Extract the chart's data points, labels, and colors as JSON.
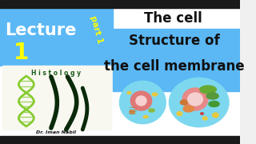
{
  "bg_color": "#f0f0f0",
  "dark_strip_color": "#1a1a1a",
  "blue_color": "#5bb8f5",
  "white": "#ffffff",
  "lecture_text": "Lecture",
  "lecture_color": "#ffffff",
  "lecture_fontsize": 15,
  "number_text": "1",
  "number_color": "#ffff00",
  "number_fontsize": 20,
  "part_text": "part 1",
  "part_color": "#ffff00",
  "part_fontsize": 7.5,
  "the_cell_text": "The cell",
  "the_cell_color": "#111111",
  "the_cell_fontsize": 12,
  "structure_text1": "Structure of",
  "structure_text2": "the cell membrane",
  "structure_color": "#111111",
  "structure_fontsize": 12,
  "histology_text": "H i s t o l o g y",
  "histology_color": "#1a5a1a",
  "histology_fontsize": 5.5,
  "dr_text": "Dr. Iman Nabil",
  "dr_color": "#111111",
  "dr_fontsize": 4.5,
  "dna_color": "#88cc33",
  "dna_dark": "#1a3a00",
  "arabic_color": "#0a2a0a",
  "cell_bg": "#7dd8ef",
  "cell_border": "#2299bb",
  "cell_outline": "#1a88aa"
}
